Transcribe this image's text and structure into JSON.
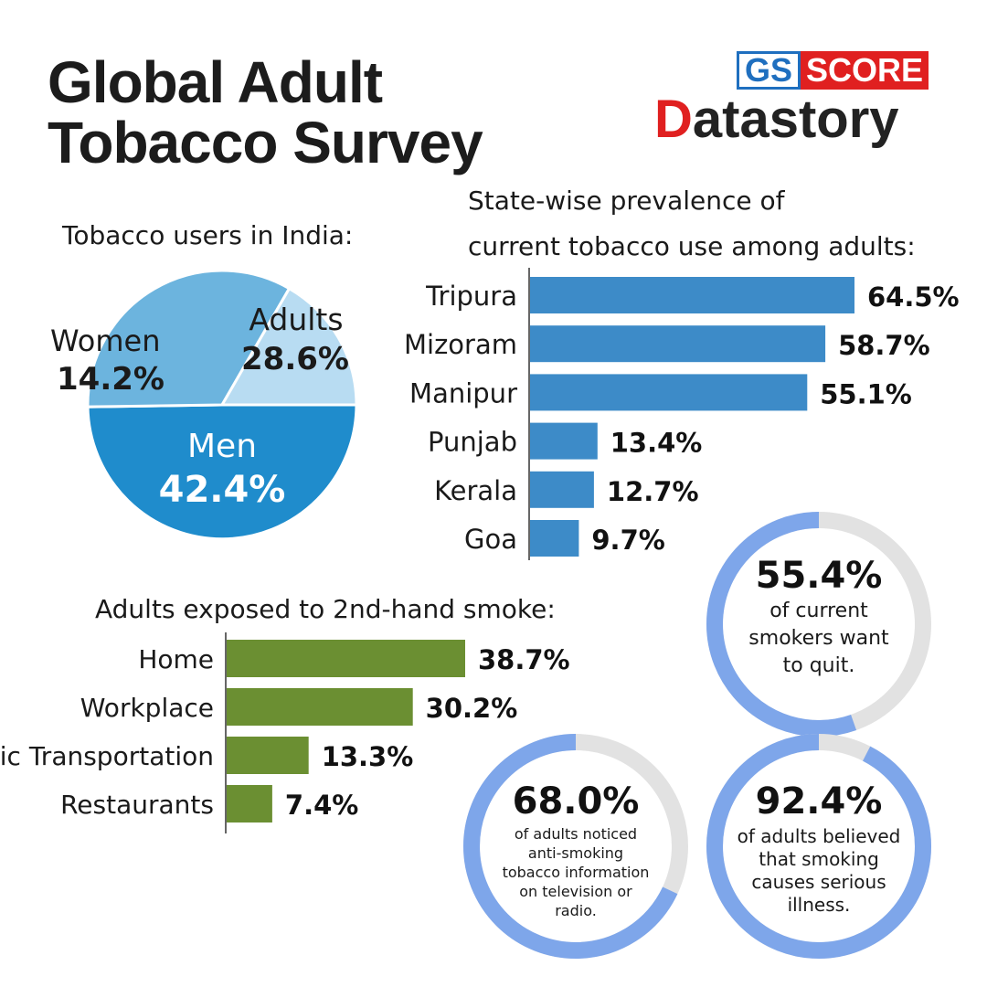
{
  "header": {
    "title_line1": "Global Adult",
    "title_line2": "Tobacco Survey",
    "logo_gs": "GS",
    "logo_score": "SCORE",
    "logo_datastory_d": "D",
    "logo_datastory_rest": "atastory"
  },
  "colors": {
    "pie_adults": "#6cb4de",
    "pie_women": "#b8dcf2",
    "pie_men": "#1f8ccc",
    "state_bar": "#3d8bc8",
    "smoke_bar": "#6b8f32",
    "ring_fill": "#7ea6ea",
    "ring_track": "#e2e2e2"
  },
  "labels": {
    "pie_title": "Tobacco users in India:",
    "state_title_line1": "State-wise prevalence of",
    "state_title_line2": "current tobacco use among adults:",
    "smoke_title": "Adults exposed to 2nd-hand smoke:"
  },
  "chart_data": [
    {
      "type": "pie",
      "title": "Tobacco users in India:",
      "categories": [
        "Men",
        "Adults",
        "Women"
      ],
      "values": [
        42.4,
        28.6,
        14.2
      ],
      "value_labels": [
        "42.4%",
        "28.6%",
        "14.2%"
      ]
    },
    {
      "type": "bar",
      "orientation": "horizontal",
      "title": "State-wise prevalence of current tobacco use among adults:",
      "categories": [
        "Tripura",
        "Mizoram",
        "Manipur",
        "Punjab",
        "Kerala",
        "Goa"
      ],
      "values": [
        64.5,
        58.7,
        55.1,
        13.4,
        12.7,
        9.7
      ],
      "value_labels": [
        "64.5%",
        "58.7%",
        "55.1%",
        "13.4%",
        "12.7%",
        "9.7%"
      ]
    },
    {
      "type": "bar",
      "orientation": "horizontal",
      "title": "Adults exposed to 2nd-hand smoke:",
      "categories": [
        "Home",
        "Workplace",
        "Public Transportation",
        "Restaurants"
      ],
      "values": [
        38.7,
        30.2,
        13.3,
        7.4
      ],
      "value_labels": [
        "38.7%",
        "30.2%",
        "13.3%",
        "7.4%"
      ]
    },
    {
      "type": "pie",
      "variant": "donut",
      "values": [
        55.4
      ],
      "value_label": "55.4%",
      "caption_lines": [
        "of current",
        "smokers want",
        "to quit."
      ]
    },
    {
      "type": "pie",
      "variant": "donut",
      "values": [
        68.0
      ],
      "value_label": "68.0%",
      "caption_lines": [
        "of adults noticed",
        "anti-smoking",
        "tobacco information",
        "on television or",
        "radio."
      ]
    },
    {
      "type": "pie",
      "variant": "donut",
      "values": [
        92.4
      ],
      "value_label": "92.4%",
      "caption_lines": [
        "of adults believed",
        "that smoking",
        "causes serious",
        "illness."
      ]
    }
  ]
}
